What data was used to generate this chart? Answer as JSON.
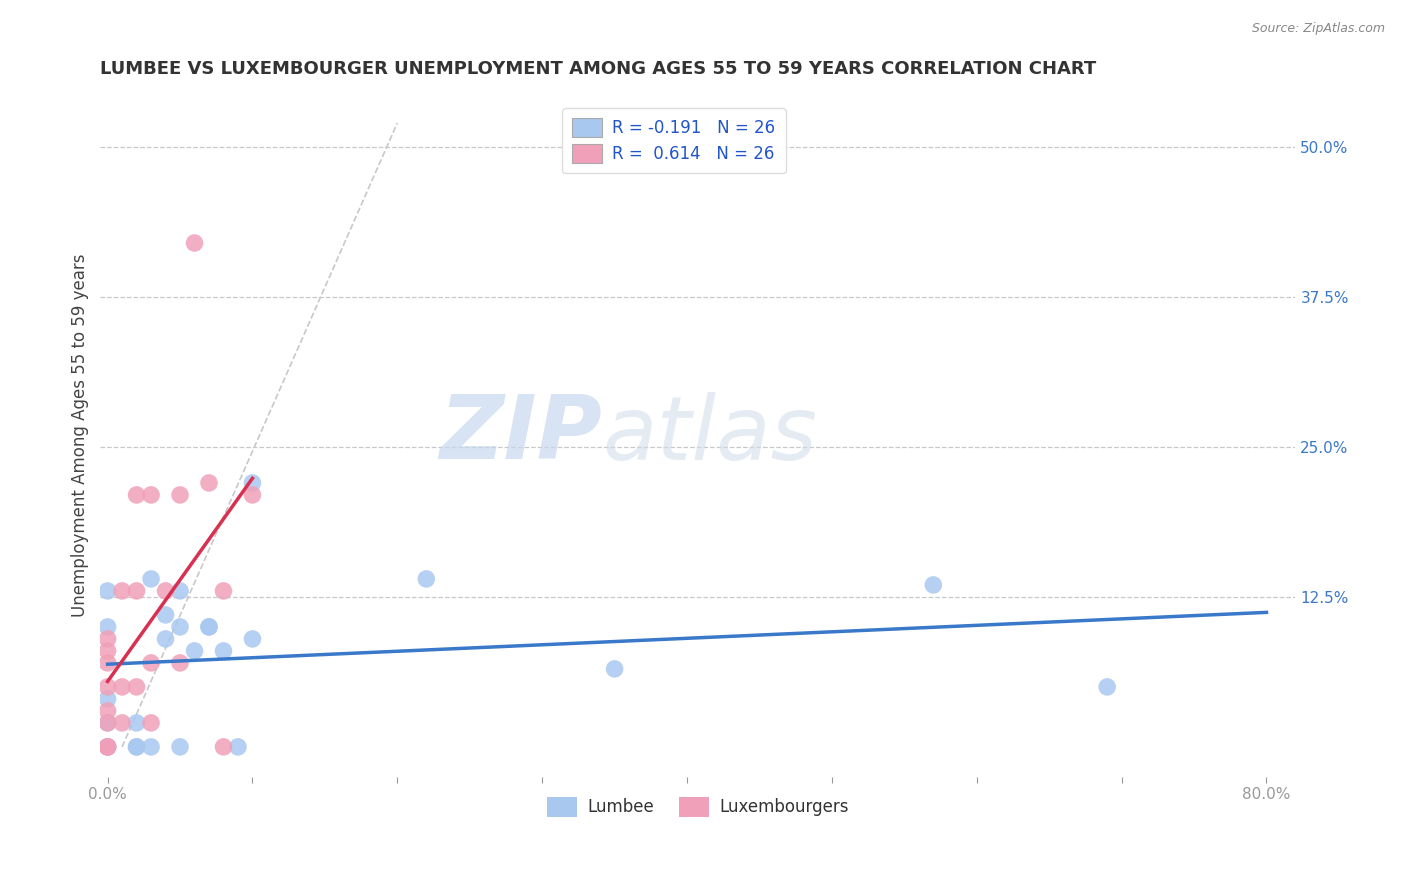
{
  "title": "LUMBEE VS LUXEMBOURGER UNEMPLOYMENT AMONG AGES 55 TO 59 YEARS CORRELATION CHART",
  "source": "Source: ZipAtlas.com",
  "ylabel": "Unemployment Among Ages 55 to 59 years",
  "xlabel": "",
  "xlim": [
    -0.005,
    0.82
  ],
  "ylim": [
    -0.025,
    0.545
  ],
  "xtick_positions": [
    0.0,
    0.1,
    0.2,
    0.3,
    0.4,
    0.5,
    0.6,
    0.7,
    0.8
  ],
  "xticklabels": [
    "0.0%",
    "",
    "",
    "",
    "",
    "",
    "",
    "",
    "80.0%"
  ],
  "yticks_right": [
    0.125,
    0.25,
    0.375,
    0.5
  ],
  "ytick_right_labels": [
    "12.5%",
    "25.0%",
    "37.5%",
    "50.0%"
  ],
  "lumbee_color": "#a8c8f0",
  "luxembourger_color": "#f0a0b8",
  "lumbee_R": -0.191,
  "lumbee_N": 26,
  "luxembourger_R": 0.614,
  "luxembourger_N": 26,
  "trend_lumbee_color": "#3a78c9",
  "trend_luxembourger_color": "#d83050",
  "watermark_zip": "ZIP",
  "watermark_atlas": "atlas",
  "background_color": "#ffffff",
  "grid_color": "#c8c8c8",
  "lumbee_x": [
    0.0,
    0.0,
    0.0,
    0.0,
    0.0,
    0.02,
    0.02,
    0.02,
    0.03,
    0.03,
    0.04,
    0.04,
    0.05,
    0.05,
    0.05,
    0.06,
    0.07,
    0.07,
    0.08,
    0.09,
    0.1,
    0.1,
    0.22,
    0.35,
    0.57,
    0.69
  ],
  "lumbee_y": [
    0.0,
    0.02,
    0.04,
    0.1,
    0.13,
    0.0,
    0.0,
    0.02,
    0.0,
    0.14,
    0.09,
    0.11,
    0.0,
    0.1,
    0.13,
    0.08,
    0.1,
    0.1,
    0.08,
    0.0,
    0.09,
    0.22,
    0.14,
    0.065,
    0.135,
    0.05
  ],
  "luxembourger_x": [
    0.0,
    0.0,
    0.0,
    0.0,
    0.0,
    0.0,
    0.0,
    0.0,
    0.0,
    0.01,
    0.01,
    0.01,
    0.02,
    0.02,
    0.02,
    0.03,
    0.03,
    0.03,
    0.04,
    0.05,
    0.05,
    0.06,
    0.07,
    0.08,
    0.08,
    0.1
  ],
  "luxembourger_y": [
    0.0,
    0.0,
    0.0,
    0.02,
    0.03,
    0.05,
    0.07,
    0.08,
    0.09,
    0.02,
    0.05,
    0.13,
    0.05,
    0.13,
    0.21,
    0.02,
    0.07,
    0.21,
    0.13,
    0.07,
    0.21,
    0.42,
    0.22,
    0.0,
    0.13,
    0.21
  ],
  "dashed_line_x": [
    0.01,
    0.2
  ],
  "dashed_line_y": [
    0.0,
    0.52
  ]
}
